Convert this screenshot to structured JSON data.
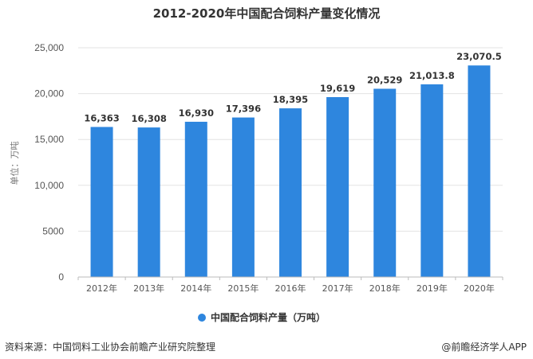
{
  "chart_data": {
    "type": "bar",
    "title": "2012-2020年中国配合饲料产量变化情况",
    "ylabel": "单位：万吨",
    "categories": [
      "2012年",
      "2013年",
      "2014年",
      "2015年",
      "2016年",
      "2017年",
      "2018年",
      "2019年",
      "2020年"
    ],
    "series": [
      {
        "name": "中国配合饲料产量（万吨）",
        "values": [
          16363,
          16308,
          16930,
          17396,
          18395,
          19619,
          20529,
          21013.8,
          23070.5
        ],
        "labels": [
          "16,363",
          "16,308",
          "16,930",
          "17,396",
          "18,395",
          "19,619",
          "20,529",
          "21,013.8",
          "23,070.5"
        ],
        "color": "#2e86de"
      }
    ],
    "ylim": [
      0,
      25000
    ],
    "yticks": [
      0,
      5000,
      10000,
      15000,
      20000,
      25000
    ],
    "ytick_labels": [
      "0",
      "5000",
      "10,000",
      "15,000",
      "20,000",
      "25,000"
    ],
    "grid": true,
    "legend_position": "bottom-center"
  },
  "footer": {
    "source": "资料来源：中国饲料工业协会前瞻产业研究院整理",
    "brand": "@前瞻经济学人APP"
  },
  "colors": {
    "bar": "#2e86de",
    "grid": "#e3e3e3",
    "axis": "#bbbbbb"
  }
}
